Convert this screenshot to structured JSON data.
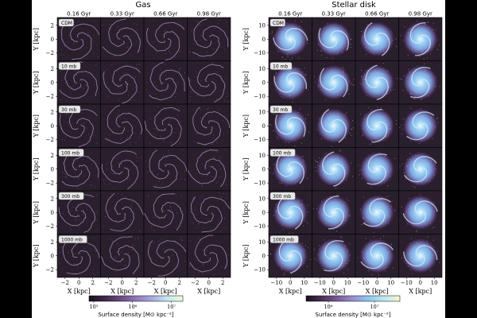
{
  "figure": {
    "panels": [
      {
        "id": "gas",
        "title": "Gas",
        "times": [
          "0.16 Gyr",
          "0.33 Gyr",
          "0.66 Gyr",
          "0.98 Gyr"
        ],
        "ylabel": "Y [kpc]",
        "xlabel": "X [kpc]",
        "yticks": [
          "2",
          "0",
          "−2"
        ],
        "xticks": [
          "−2",
          "0",
          "2"
        ],
        "colorbar": {
          "label": "Surface density [M⊙ kpc⁻²]",
          "ticks": [
            "10⁵",
            "10⁶",
            "10⁷"
          ],
          "stops": [
            "#1a1020",
            "#3f2848",
            "#6a4a80",
            "#8f78b8",
            "#a8a8e0",
            "#c4e8f0",
            "#eef8d8"
          ]
        }
      },
      {
        "id": "stellar",
        "title": "Stellar disk",
        "times": [
          "0.16 Gyr",
          "0.33 Gyr",
          "0.66 Gyr",
          "0.98 Gyr"
        ],
        "ylabel": "Y [kpc]",
        "xlabel": "X [kpc]",
        "yticks": [
          "10",
          "0",
          "−10"
        ],
        "xticks": [
          "−10",
          "0",
          "10"
        ],
        "colorbar": {
          "label": "Surface density [M⊙ kpc⁻²]",
          "ticks": [
            "10⁶",
            "10⁷"
          ],
          "stops": [
            "#1a1020",
            "#4a3050",
            "#7a5a98",
            "#9a90d0",
            "#8ec8f0",
            "#bfe8f0",
            "#f4f8d0"
          ]
        }
      }
    ],
    "rows": [
      "CDM",
      "10 mb",
      "30 mb",
      "100 mb",
      "300 mb",
      "1000 mb"
    ]
  }
}
